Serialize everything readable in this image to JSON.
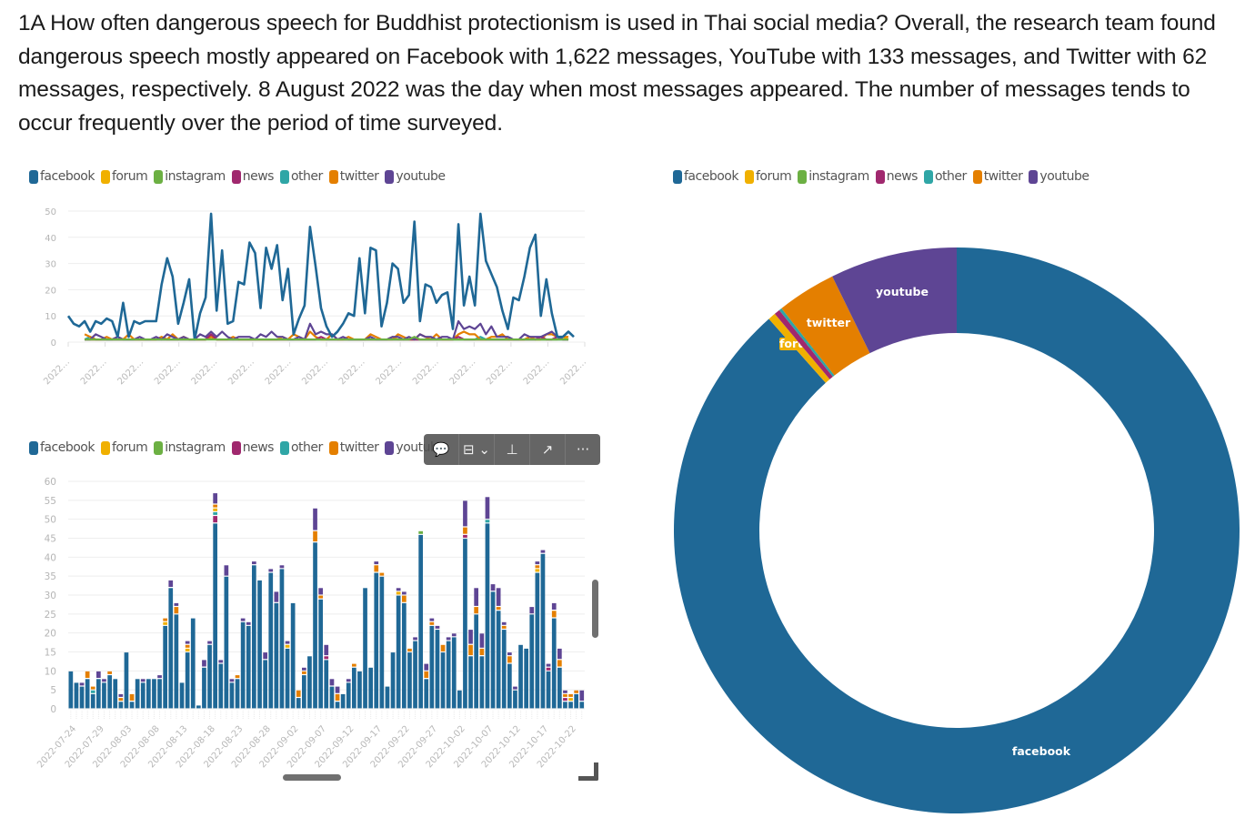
{
  "intro_text": "1A How often dangerous speech for Buddhist protectionism is used in Thai social media? Overall, the research team found dangerous speech mostly appeared on Facebook with 1,622 messages, YouTube with 133 messages, and Twitter with 62 messages, respectively. 8 August 2022 was the day when most messages appeared. The number of messages tends to occur frequently over the period of time surveyed.",
  "legend": [
    {
      "name": "facebook",
      "color": "#1f6896"
    },
    {
      "name": "forum",
      "color": "#f0b000"
    },
    {
      "name": "instagram",
      "color": "#6cb043"
    },
    {
      "name": "news",
      "color": "#a0286e"
    },
    {
      "name": "other",
      "color": "#2fa6a6"
    },
    {
      "name": "twitter",
      "color": "#e47f00"
    },
    {
      "name": "youtube",
      "color": "#5e4594"
    }
  ],
  "toolbar": {
    "items": [
      {
        "name": "comment-icon",
        "glyph": "💬"
      },
      {
        "name": "focus-mode-icon",
        "glyph": "⊟ ⌄"
      },
      {
        "name": "pin-icon",
        "glyph": "⊥"
      },
      {
        "name": "expand-icon",
        "glyph": "↗"
      },
      {
        "name": "more-options-icon",
        "glyph": "···"
      }
    ]
  },
  "chart_data": [
    {
      "type": "line",
      "title": "",
      "xlabel": "",
      "ylabel": "",
      "ylim": [
        0,
        50
      ],
      "yticks": [
        0,
        10,
        20,
        30,
        40,
        50
      ],
      "xtick_labels": [
        "2022…",
        "2022…",
        "2022…",
        "2022…",
        "2022…",
        "2022…",
        "2022…",
        "2022…",
        "2022…",
        "2022…",
        "2022…",
        "2022…",
        "2022…",
        "2022…",
        "2022…"
      ],
      "grid": true,
      "legend_position": "top-left",
      "x_start": "2022-07-24",
      "x_end": "2022-10-24",
      "series": [
        {
          "name": "facebook",
          "values": [
            10,
            7,
            6,
            8,
            4,
            8,
            7,
            9,
            8,
            2,
            15,
            2,
            8,
            7,
            8,
            8,
            8,
            22,
            32,
            25,
            7,
            15,
            24,
            1,
            11,
            17,
            49,
            12,
            35,
            7,
            8,
            23,
            22,
            38,
            34,
            13,
            36,
            28,
            37,
            16,
            28,
            3,
            9,
            14,
            44,
            29,
            13,
            6,
            2,
            4,
            7,
            11,
            10,
            32,
            11,
            36,
            35,
            6,
            15,
            30,
            28,
            15,
            18,
            46,
            8,
            22,
            21,
            15,
            18,
            19,
            5,
            45,
            14,
            25,
            14,
            49,
            31,
            26,
            21,
            12,
            5,
            17,
            16,
            25,
            36,
            41,
            10,
            24,
            11,
            2,
            2,
            4,
            2
          ]
        },
        {
          "name": "twitter",
          "values": [
            0,
            0,
            0,
            2,
            1,
            0,
            0,
            1,
            0,
            1,
            0,
            2,
            0,
            0,
            0,
            0,
            0,
            1,
            0,
            2,
            0,
            1,
            0,
            0,
            0,
            0,
            1,
            0,
            0,
            0,
            1,
            0,
            0,
            0,
            0,
            0,
            0,
            0,
            0,
            0,
            0,
            2,
            1,
            0,
            3,
            1,
            0,
            0,
            2,
            0,
            0,
            1,
            0,
            0,
            0,
            2,
            1,
            0,
            0,
            0,
            2,
            1,
            0,
            0,
            2,
            1,
            0,
            2,
            0,
            0,
            0,
            2,
            3,
            2,
            2,
            0,
            0,
            1,
            1,
            2,
            0,
            0,
            0,
            0,
            1,
            0,
            0,
            2,
            2,
            1,
            1,
            1,
            0
          ]
        },
        {
          "name": "youtube",
          "values": [
            0,
            0,
            1,
            0,
            0,
            2,
            1,
            0,
            0,
            1,
            0,
            0,
            0,
            1,
            0,
            0,
            1,
            0,
            2,
            1,
            0,
            1,
            0,
            0,
            2,
            1,
            3,
            1,
            3,
            1,
            0,
            1,
            1,
            1,
            0,
            2,
            1,
            3,
            1,
            1,
            0,
            0,
            1,
            0,
            6,
            2,
            3,
            2,
            2,
            0,
            1,
            0,
            0,
            0,
            0,
            1,
            0,
            0,
            0,
            1,
            1,
            0,
            1,
            0,
            2,
            1,
            1,
            0,
            1,
            1,
            0,
            7,
            4,
            5,
            4,
            6,
            2,
            5,
            1,
            1,
            1,
            0,
            0,
            2,
            1,
            1,
            1,
            2,
            3,
            1,
            0,
            0,
            3
          ]
        },
        {
          "name": "news",
          "values": [
            0,
            0,
            0,
            0,
            0,
            0,
            0,
            0,
            0,
            0,
            0,
            0,
            0,
            0,
            0,
            0,
            0,
            0,
            0,
            0,
            0,
            0,
            0,
            0,
            0,
            0,
            2,
            0,
            0,
            0,
            0,
            0,
            0,
            0,
            0,
            0,
            0,
            0,
            0,
            0,
            0,
            0,
            0,
            0,
            0,
            0,
            1,
            0,
            0,
            0,
            0,
            0,
            0,
            0,
            0,
            0,
            0,
            0,
            0,
            0,
            0,
            0,
            0,
            0,
            0,
            0,
            0,
            0,
            0,
            0,
            0,
            1,
            0,
            0,
            0,
            0,
            0,
            0,
            0,
            0,
            0,
            0,
            0,
            0,
            0,
            0,
            1,
            0,
            0,
            1,
            0,
            0,
            0
          ]
        },
        {
          "name": "other",
          "values": [
            0,
            0,
            0,
            0,
            1,
            0,
            0,
            0,
            0,
            0,
            0,
            0,
            0,
            0,
            0,
            0,
            0,
            0,
            0,
            0,
            0,
            0,
            0,
            0,
            0,
            0,
            1,
            0,
            0,
            0,
            0,
            0,
            0,
            0,
            0,
            0,
            0,
            0,
            0,
            0,
            0,
            0,
            0,
            0,
            0,
            0,
            0,
            0,
            0,
            0,
            0,
            0,
            0,
            0,
            0,
            0,
            0,
            0,
            0,
            0,
            0,
            0,
            0,
            0,
            0,
            0,
            0,
            0,
            0,
            0,
            0,
            0,
            0,
            0,
            0,
            1,
            0,
            0,
            0,
            0,
            0,
            0,
            0,
            0,
            0,
            0,
            0,
            0,
            0,
            0,
            0,
            0,
            0
          ]
        },
        {
          "name": "forum",
          "values": [
            0,
            0,
            0,
            0,
            0,
            0,
            0,
            0,
            0,
            0,
            0,
            0,
            0,
            0,
            0,
            0,
            0,
            1,
            0,
            0,
            0,
            1,
            0,
            0,
            0,
            0,
            1,
            0,
            0,
            0,
            0,
            0,
            0,
            0,
            0,
            0,
            0,
            0,
            0,
            1,
            0,
            0,
            0,
            0,
            0,
            0,
            0,
            0,
            0,
            0,
            0,
            0,
            0,
            0,
            0,
            0,
            0,
            0,
            0,
            1,
            0,
            0,
            0,
            0,
            0,
            0,
            0,
            0,
            0,
            0,
            0,
            0,
            0,
            0,
            0,
            0,
            0,
            0,
            0,
            0,
            0,
            0,
            0,
            0,
            1,
            0,
            0,
            0,
            0,
            0,
            1,
            0,
            0
          ]
        },
        {
          "name": "instagram",
          "values": [
            0,
            0,
            0,
            0,
            0,
            0,
            0,
            0,
            0,
            0,
            0,
            0,
            0,
            0,
            0,
            0,
            0,
            0,
            0,
            0,
            0,
            0,
            0,
            0,
            0,
            0,
            0,
            0,
            0,
            0,
            0,
            0,
            0,
            0,
            0,
            0,
            0,
            0,
            0,
            0,
            0,
            0,
            0,
            0,
            0,
            0,
            0,
            0,
            0,
            0,
            0,
            0,
            0,
            0,
            0,
            0,
            0,
            0,
            0,
            0,
            0,
            0,
            0,
            1,
            0,
            0,
            0,
            0,
            0,
            0,
            0,
            0,
            0,
            0,
            0,
            0,
            0,
            0,
            0,
            0,
            0,
            0,
            0,
            0,
            0,
            0,
            0,
            0,
            0,
            0,
            0,
            0,
            0
          ]
        }
      ]
    },
    {
      "type": "bar",
      "stacked": true,
      "title": "",
      "xlabel": "",
      "ylabel": "",
      "ylim": [
        0,
        60
      ],
      "yticks": [
        0,
        5,
        10,
        15,
        20,
        25,
        30,
        35,
        40,
        45,
        50,
        55,
        60
      ],
      "xtick_labels": [
        "2022-07-24",
        "2022-07-29",
        "2022-08-03",
        "2022-08-08",
        "2022-08-13",
        "2022-08-18",
        "2022-08-23",
        "2022-08-28",
        "2022-09-02",
        "2022-09-07",
        "2022-09-12",
        "2022-09-17",
        "2022-09-22",
        "2022-09-27",
        "2022-10-02",
        "2022-10-07",
        "2022-10-12",
        "2022-10-17",
        "2022-10-22"
      ],
      "grid": true,
      "legend_position": "top-left",
      "series_source": "same daily series as line chart"
    },
    {
      "type": "pie",
      "donut": true,
      "title": "",
      "legend_position": "top-left",
      "slices": [
        {
          "label": "facebook",
          "value": 1622
        },
        {
          "label": "forum",
          "value": 8
        },
        {
          "label": "news",
          "value": 6
        },
        {
          "label": "other",
          "value": 3
        },
        {
          "label": "twitter",
          "value": 62
        },
        {
          "label": "youtube",
          "value": 133
        }
      ],
      "visible_slice_labels": [
        "youtube",
        "twitter",
        "forum",
        "facebook"
      ]
    }
  ]
}
